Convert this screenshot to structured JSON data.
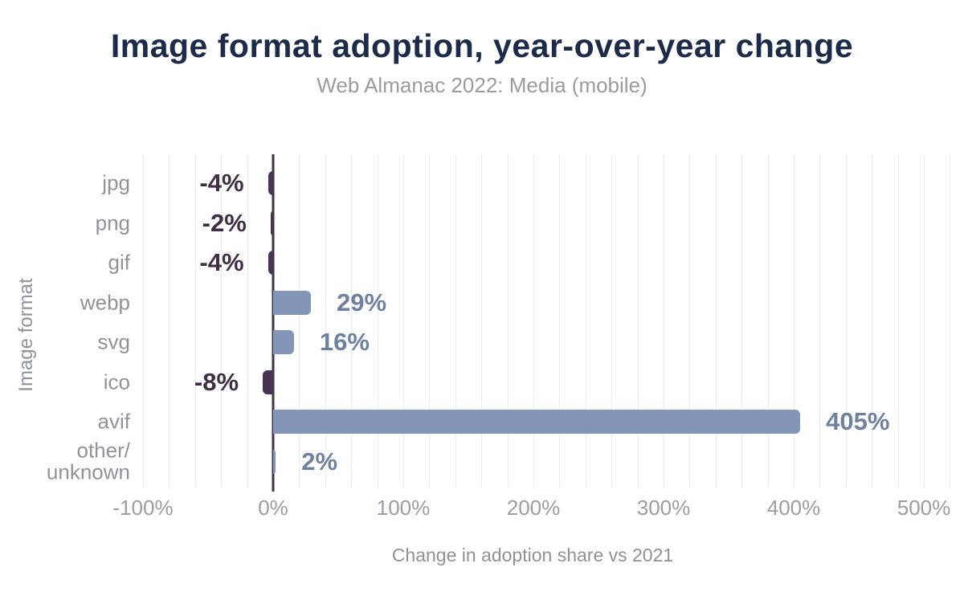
{
  "header": {
    "title": "Image format adoption, year-over-year change",
    "subtitle": "Web Almanac 2022: Media (mobile)"
  },
  "colors": {
    "title_text": "#1c2b4a",
    "subtitle_text": "#9b9ca0",
    "axis_text": "#8f939a",
    "positive_bar": "#8396b8",
    "negative_bar": "#473450",
    "positive_label": "#6f81a0",
    "negative_label": "#3f2e45",
    "zero_line": "#413347",
    "gridline": "#ededee"
  },
  "chart_data": {
    "type": "bar",
    "orientation": "horizontal",
    "title": "Image format adoption, year-over-year change",
    "subtitle": "Web Almanac 2022: Media (mobile)",
    "xlabel": "Change in adoption share vs 2021",
    "ylabel": "Image format",
    "categories": [
      "jpg",
      "png",
      "gif",
      "webp",
      "svg",
      "ico",
      "avif",
      "other/\nunknown"
    ],
    "values": [
      -4,
      -2,
      -4,
      29,
      16,
      -8,
      405,
      2
    ],
    "value_labels": [
      "-4%",
      "-2%",
      "-4%",
      "29%",
      "16%",
      "-8%",
      "405%",
      "2%"
    ],
    "unit": "%",
    "xticks": [
      -100,
      0,
      100,
      200,
      300,
      400,
      500
    ],
    "xtick_labels": [
      "-100%",
      "0%",
      "100%",
      "200%",
      "300%",
      "400%",
      "500%"
    ],
    "xlim": [
      -108,
      522
    ],
    "grid": true,
    "gridline_step": 20,
    "grid_range": [
      -100,
      520
    ],
    "legend": false
  }
}
